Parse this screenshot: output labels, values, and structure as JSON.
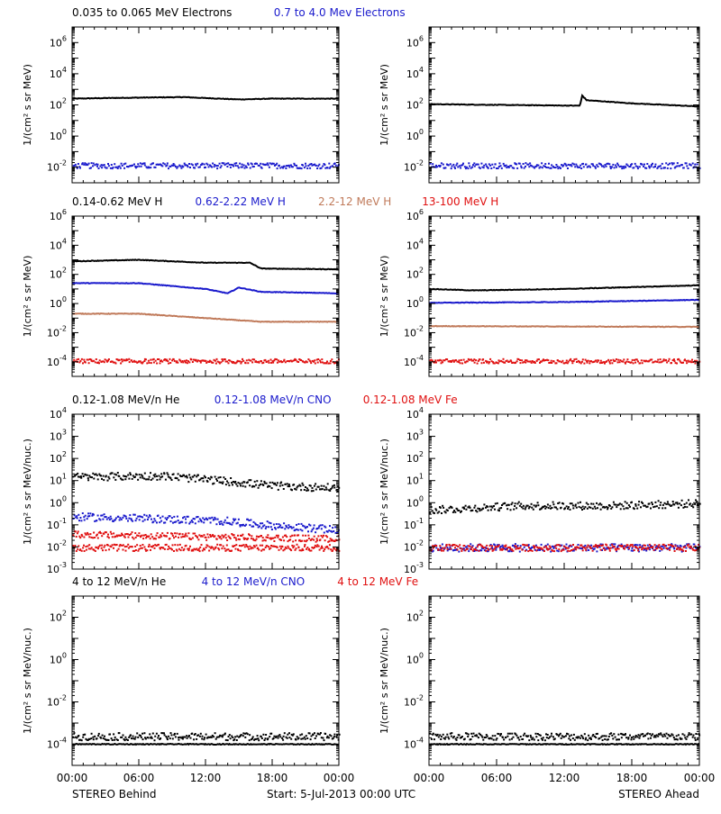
{
  "colors": {
    "black": "#000000",
    "blue": "#1a1acc",
    "tan": "#c07a5a",
    "red": "#e01010"
  },
  "x_ticks": [
    "00:00",
    "06:00",
    "12:00",
    "18:00",
    "00:00"
  ],
  "footer": {
    "left": "STEREO Behind",
    "center": "Start:  5-Jul-2013 00:00 UTC",
    "right": "STEREO Ahead"
  },
  "chart_data": [
    {
      "type": "scatter",
      "row": 0,
      "ylabel": "1/(cm² s sr MeV)",
      "ylog_range": [
        -3,
        7
      ],
      "ytick_exps": [
        -2,
        0,
        2,
        4,
        6
      ],
      "legend": [
        {
          "text": "0.035 to 0.065 MeV Electrons",
          "color": "black"
        },
        {
          "text": "0.7 to 4.0 Mev Electrons",
          "color": "blue"
        }
      ],
      "x_range_hours": [
        0,
        24
      ],
      "behind": [
        {
          "color": "black",
          "style": "line",
          "log_values": [
            [
              0,
              2.4
            ],
            [
              4,
              2.45
            ],
            [
              10,
              2.5
            ],
            [
              15,
              2.35
            ],
            [
              18,
              2.4
            ],
            [
              24,
              2.4
            ]
          ]
        },
        {
          "color": "blue",
          "style": "scatter",
          "log_values": [
            [
              0,
              -1.85
            ],
            [
              24,
              -1.85
            ]
          ]
        }
      ],
      "ahead": [
        {
          "color": "black",
          "style": "line",
          "log_values": [
            [
              0,
              2.05
            ],
            [
              6,
              2.0
            ],
            [
              13.4,
              1.95
            ],
            [
              13.6,
              2.6
            ],
            [
              14,
              2.3
            ],
            [
              18,
              2.1
            ],
            [
              24,
              1.9
            ]
          ]
        },
        {
          "color": "blue",
          "style": "scatter",
          "log_values": [
            [
              0,
              -1.85
            ],
            [
              24,
              -1.85
            ]
          ]
        }
      ]
    },
    {
      "type": "scatter",
      "row": 1,
      "ylabel": "1/(cm² s sr MeV)",
      "ylog_range": [
        -5,
        6
      ],
      "ytick_exps": [
        -4,
        -2,
        0,
        2,
        4,
        6
      ],
      "legend": [
        {
          "text": "0.14-0.62 MeV H",
          "color": "black"
        },
        {
          "text": "0.62-2.22 MeV H",
          "color": "blue"
        },
        {
          "text": "2.2-12 MeV H",
          "color": "tan"
        },
        {
          "text": "13-100 MeV H",
          "color": "red"
        }
      ],
      "x_range_hours": [
        0,
        24
      ],
      "behind": [
        {
          "color": "black",
          "style": "line",
          "log_values": [
            [
              0,
              2.9
            ],
            [
              6,
              3.0
            ],
            [
              12,
              2.8
            ],
            [
              16,
              2.8
            ],
            [
              17,
              2.4
            ],
            [
              24,
              2.35
            ]
          ]
        },
        {
          "color": "blue",
          "style": "line",
          "log_values": [
            [
              0,
              1.4
            ],
            [
              6,
              1.4
            ],
            [
              12,
              1.0
            ],
            [
              14,
              0.7
            ],
            [
              15,
              1.1
            ],
            [
              17,
              0.8
            ],
            [
              24,
              0.7
            ]
          ]
        },
        {
          "color": "tan",
          "style": "line",
          "log_values": [
            [
              0,
              -0.7
            ],
            [
              6,
              -0.7
            ],
            [
              12,
              -1.0
            ],
            [
              17,
              -1.25
            ],
            [
              24,
              -1.25
            ]
          ]
        },
        {
          "color": "red",
          "style": "scatter",
          "log_values": [
            [
              0,
              -3.9
            ],
            [
              24,
              -3.9
            ]
          ]
        }
      ],
      "ahead": [
        {
          "color": "black",
          "style": "line",
          "log_values": [
            [
              0,
              1.0
            ],
            [
              4,
              0.9
            ],
            [
              12,
              1.0
            ],
            [
              24,
              1.25
            ]
          ]
        },
        {
          "color": "blue",
          "style": "line",
          "log_values": [
            [
              0,
              0.05
            ],
            [
              12,
              0.1
            ],
            [
              24,
              0.25
            ]
          ]
        },
        {
          "color": "tan",
          "style": "line",
          "log_values": [
            [
              0,
              -1.55
            ],
            [
              24,
              -1.6
            ]
          ]
        },
        {
          "color": "red",
          "style": "scatter",
          "log_values": [
            [
              0,
              -3.9
            ],
            [
              24,
              -3.9
            ]
          ]
        }
      ]
    },
    {
      "type": "scatter",
      "row": 2,
      "ylabel": "1/(cm² s sr MeV/nuc.)",
      "ylog_range": [
        -3,
        4
      ],
      "ytick_exps": [
        -3,
        -2,
        -1,
        0,
        1,
        2,
        3,
        4
      ],
      "legend": [
        {
          "text": "0.12-1.08 MeV/n He",
          "color": "black"
        },
        {
          "text": "0.12-1.08 MeV/n CNO",
          "color": "blue"
        },
        {
          "text": "0.12-1.08 MeV Fe",
          "color": "red"
        }
      ],
      "x_range_hours": [
        0,
        24
      ],
      "behind": [
        {
          "color": "black",
          "style": "scatter",
          "log_values": [
            [
              0,
              1.2
            ],
            [
              8,
              1.25
            ],
            [
              14,
              1.0
            ],
            [
              18,
              0.8
            ],
            [
              24,
              0.7
            ]
          ]
        },
        {
          "color": "blue",
          "style": "scatter",
          "log_values": [
            [
              0,
              -0.6
            ],
            [
              8,
              -0.7
            ],
            [
              14,
              -0.8
            ],
            [
              18,
              -1.0
            ],
            [
              24,
              -1.2
            ]
          ]
        },
        {
          "color": "red",
          "style": "scatter",
          "log_values": [
            [
              0,
              -1.4
            ],
            [
              24,
              -1.6
            ]
          ]
        },
        {
          "color": "red",
          "style": "scatter",
          "log_values": [
            [
              0,
              -2.0
            ],
            [
              24,
              -2.0
            ]
          ]
        }
      ],
      "ahead": [
        {
          "color": "black",
          "style": "scatter",
          "log_values": [
            [
              0,
              -0.3
            ],
            [
              8,
              -0.1
            ],
            [
              16,
              -0.1
            ],
            [
              24,
              0.0
            ]
          ]
        },
        {
          "color": "blue",
          "style": "scatter",
          "log_values": [
            [
              0,
              -2.0
            ],
            [
              24,
              -2.0
            ]
          ]
        },
        {
          "color": "red",
          "style": "scatter",
          "log_values": [
            [
              0,
              -2.0
            ],
            [
              24,
              -2.0
            ]
          ]
        }
      ]
    },
    {
      "type": "scatter",
      "row": 3,
      "ylabel": "1/(cm² s sr MeV/nuc.)",
      "ylog_range": [
        -5,
        3
      ],
      "ytick_exps": [
        -4,
        -2,
        0,
        2
      ],
      "legend": [
        {
          "text": "4 to 12 MeV/n He",
          "color": "black"
        },
        {
          "text": "4 to 12 MeV/n CNO",
          "color": "blue"
        },
        {
          "text": "4 to 12 MeV Fe",
          "color": "red"
        }
      ],
      "x_range_hours": [
        0,
        24
      ],
      "behind": [
        {
          "color": "black",
          "style": "line",
          "log_values": [
            [
              0,
              -4.0
            ],
            [
              24,
              -4.0
            ]
          ]
        },
        {
          "color": "black",
          "style": "scatter",
          "log_values": [
            [
              0,
              -3.6
            ],
            [
              24,
              -3.6
            ]
          ]
        }
      ],
      "ahead": [
        {
          "color": "black",
          "style": "line",
          "log_values": [
            [
              0,
              -4.0
            ],
            [
              24,
              -4.0
            ]
          ]
        },
        {
          "color": "black",
          "style": "scatter",
          "log_values": [
            [
              0,
              -3.6
            ],
            [
              24,
              -3.6
            ]
          ]
        }
      ]
    }
  ]
}
